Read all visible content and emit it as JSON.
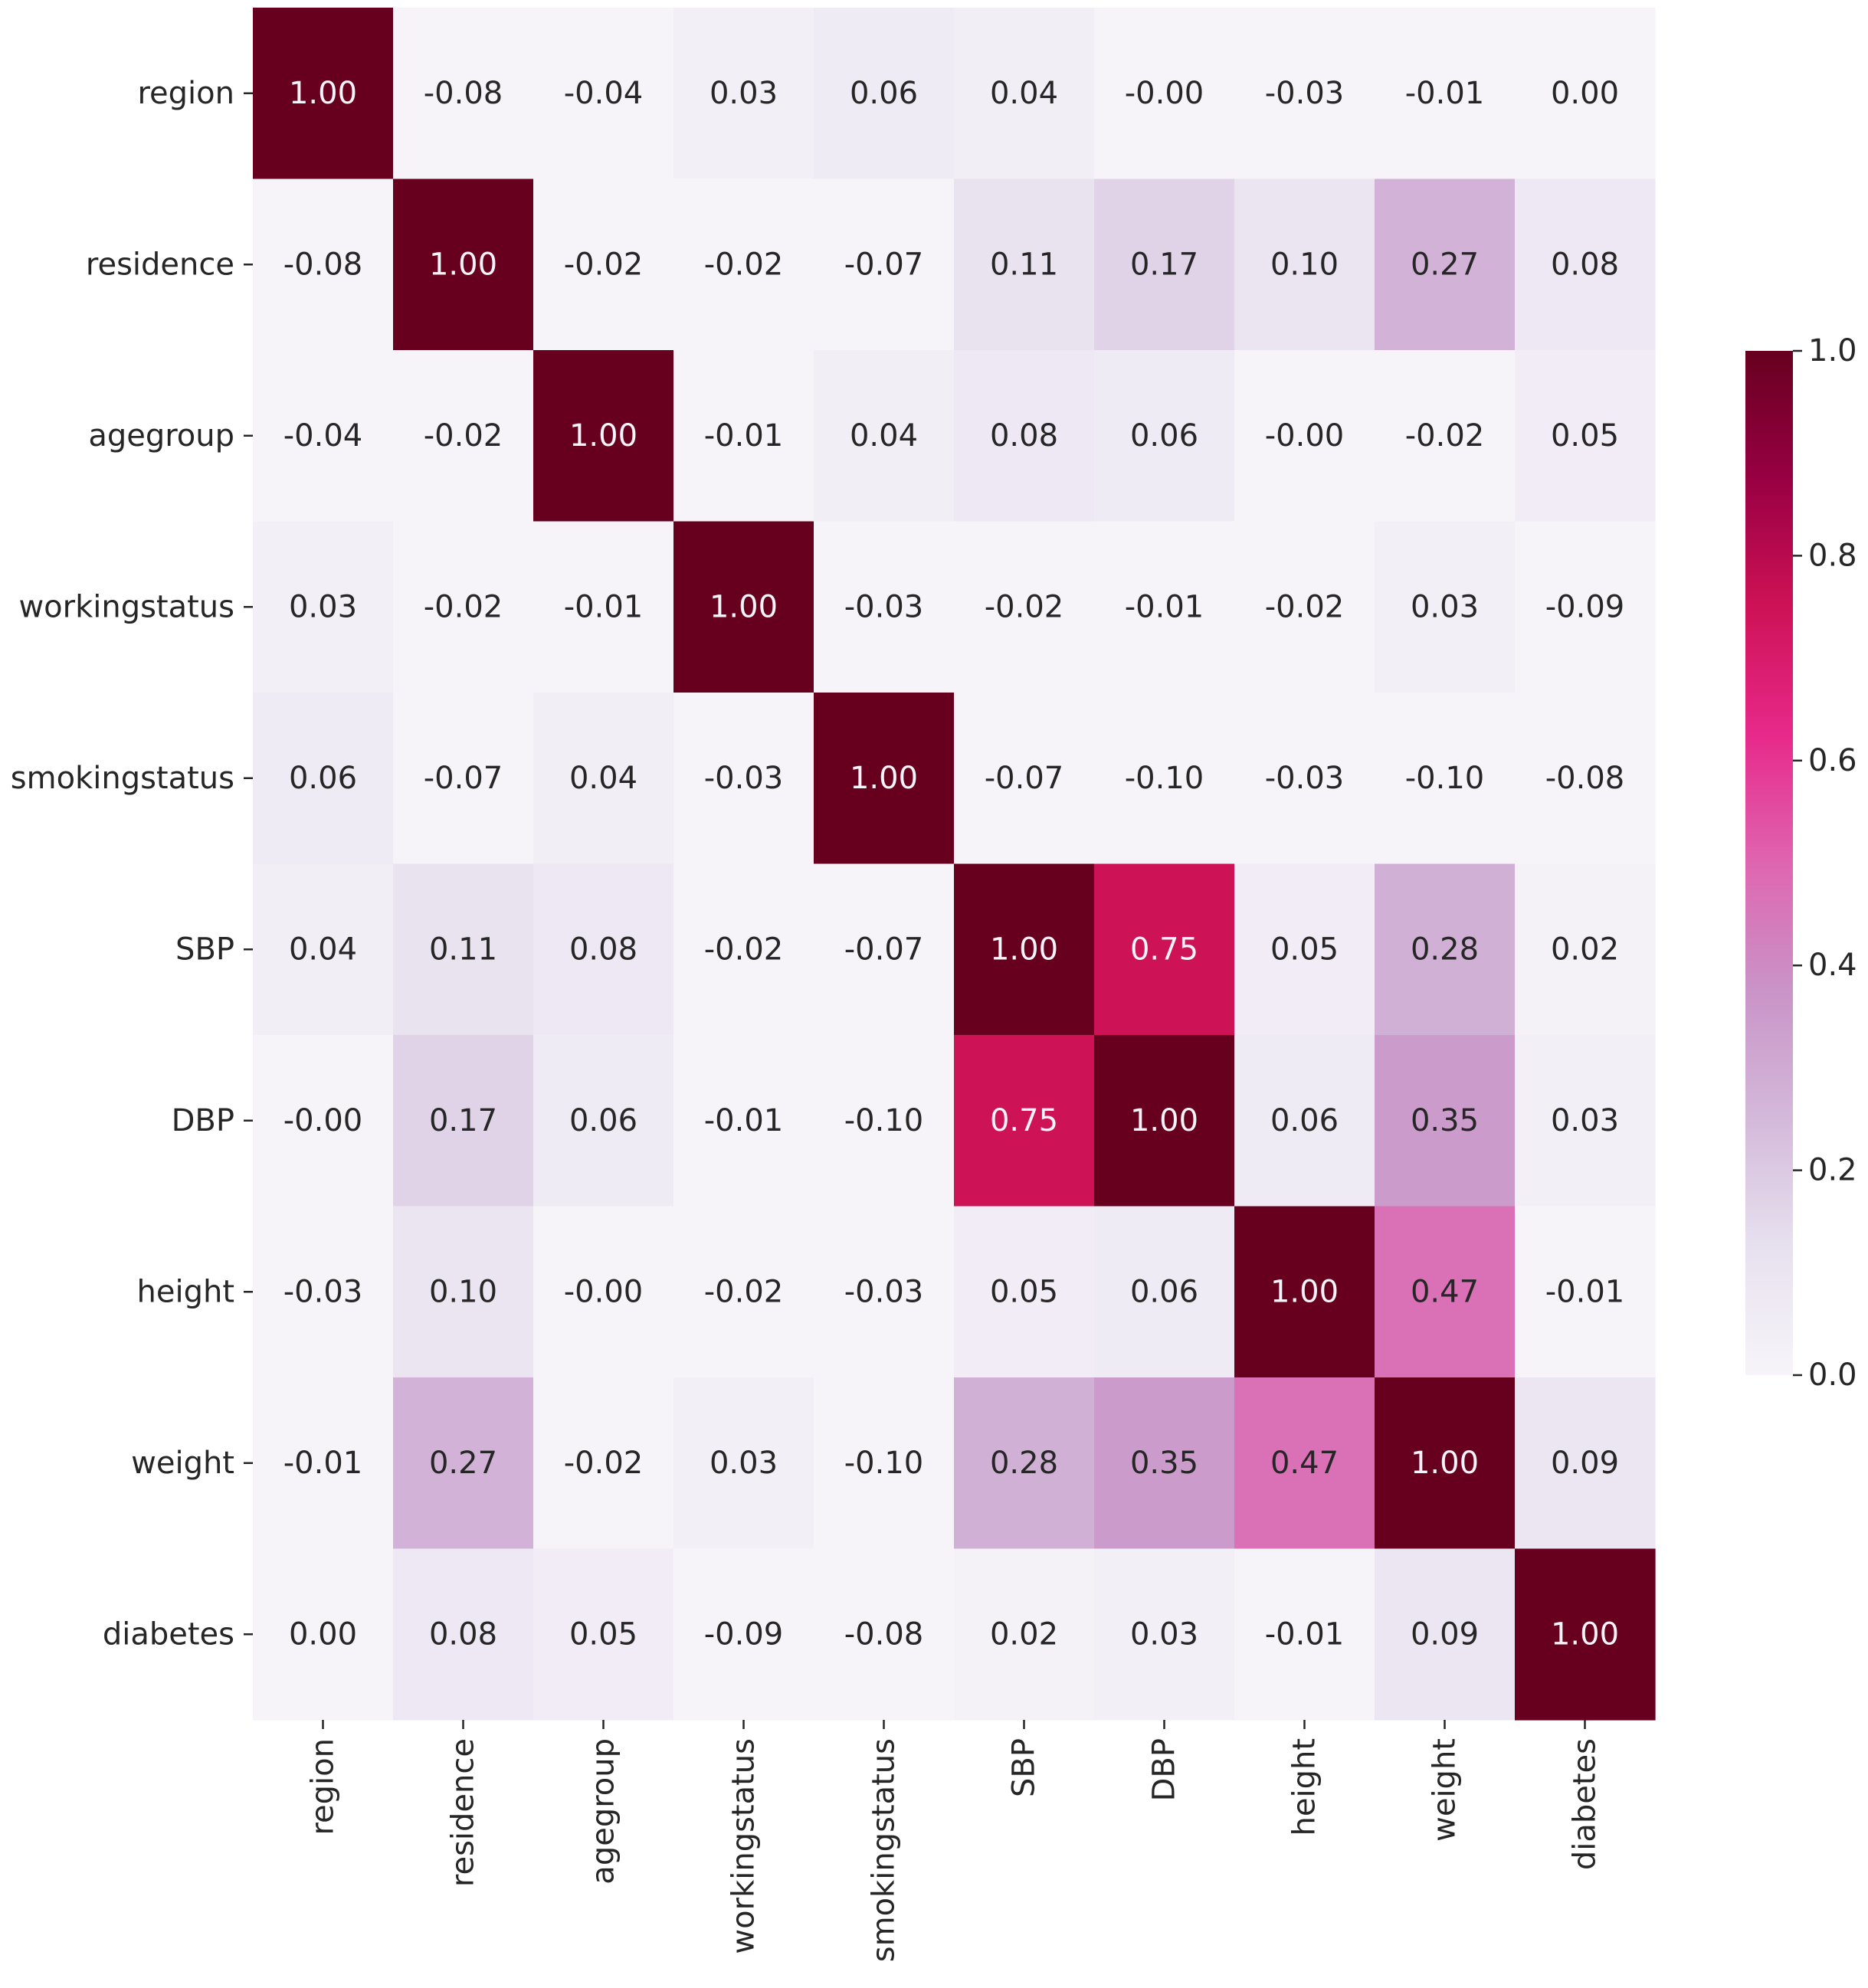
{
  "chart_data": {
    "type": "heatmap",
    "variables": [
      "region",
      "residence",
      "agegroup",
      "workingstatus",
      "smokingstatus",
      "SBP",
      "DBP",
      "height",
      "weight",
      "diabetes"
    ],
    "values": [
      [
        1.0,
        -0.08,
        -0.04,
        0.03,
        0.06,
        0.04,
        -0.0,
        -0.03,
        -0.01,
        0.0
      ],
      [
        -0.08,
        1.0,
        -0.02,
        -0.02,
        -0.07,
        0.11,
        0.17,
        0.1,
        0.27,
        0.08
      ],
      [
        -0.04,
        -0.02,
        1.0,
        -0.01,
        0.04,
        0.08,
        0.06,
        -0.0,
        -0.02,
        0.05
      ],
      [
        0.03,
        -0.02,
        -0.01,
        1.0,
        -0.03,
        -0.02,
        -0.01,
        -0.02,
        0.03,
        -0.09
      ],
      [
        0.06,
        -0.07,
        0.04,
        -0.03,
        1.0,
        -0.07,
        -0.1,
        -0.03,
        -0.1,
        -0.08
      ],
      [
        0.04,
        0.11,
        0.08,
        -0.02,
        -0.07,
        1.0,
        0.75,
        0.05,
        0.28,
        0.02
      ],
      [
        -0.0,
        0.17,
        0.06,
        -0.01,
        -0.1,
        0.75,
        1.0,
        0.06,
        0.35,
        0.03
      ],
      [
        -0.03,
        0.1,
        -0.0,
        -0.02,
        -0.03,
        0.05,
        0.06,
        1.0,
        0.47,
        -0.01
      ],
      [
        -0.01,
        0.27,
        -0.02,
        0.03,
        -0.1,
        0.28,
        0.35,
        0.47,
        1.0,
        0.09
      ],
      [
        0.0,
        0.08,
        0.05,
        -0.09,
        -0.08,
        0.02,
        0.03,
        -0.01,
        0.09,
        1.0
      ]
    ],
    "labels": [
      [
        "1.00",
        "-0.08",
        "-0.04",
        "0.03",
        "0.06",
        "0.04",
        "-0.00",
        "-0.03",
        "-0.01",
        "0.00"
      ],
      [
        "-0.08",
        "1.00",
        "-0.02",
        "-0.02",
        "-0.07",
        "0.11",
        "0.17",
        "0.10",
        "0.27",
        "0.08"
      ],
      [
        "-0.04",
        "-0.02",
        "1.00",
        "-0.01",
        "0.04",
        "0.08",
        "0.06",
        "-0.00",
        "-0.02",
        "0.05"
      ],
      [
        "0.03",
        "-0.02",
        "-0.01",
        "1.00",
        "-0.03",
        "-0.02",
        "-0.01",
        "-0.02",
        "0.03",
        "-0.09"
      ],
      [
        "0.06",
        "-0.07",
        "0.04",
        "-0.03",
        "1.00",
        "-0.07",
        "-0.10",
        "-0.03",
        "-0.10",
        "-0.08"
      ],
      [
        "0.04",
        "0.11",
        "0.08",
        "-0.02",
        "-0.07",
        "1.00",
        "0.75",
        "0.05",
        "0.28",
        "0.02"
      ],
      [
        "-0.00",
        "0.17",
        "0.06",
        "-0.01",
        "-0.10",
        "0.75",
        "1.00",
        "0.06",
        "0.35",
        "0.03"
      ],
      [
        "-0.03",
        "0.10",
        "-0.00",
        "-0.02",
        "-0.03",
        "0.05",
        "0.06",
        "1.00",
        "0.47",
        "-0.01"
      ],
      [
        "-0.01",
        "0.27",
        "-0.02",
        "0.03",
        "-0.10",
        "0.28",
        "0.35",
        "0.47",
        "1.00",
        "0.09"
      ],
      [
        "0.00",
        "0.08",
        "0.05",
        "-0.09",
        "-0.08",
        "0.02",
        "0.03",
        "-0.01",
        "0.09",
        "1.00"
      ]
    ],
    "colorbar": {
      "range": [
        0.0,
        1.0
      ],
      "ticks": [
        0.0,
        0.2,
        0.4,
        0.6,
        0.8,
        1.0
      ],
      "tick_labels": [
        "0.0",
        "0.2",
        "0.4",
        "0.6",
        "0.8",
        "1.0"
      ]
    },
    "colormap": {
      "name": "PuRd",
      "stops": [
        [
          0.0,
          "#f7f4f9"
        ],
        [
          0.125,
          "#e7e1ef"
        ],
        [
          0.25,
          "#d4b9da"
        ],
        [
          0.375,
          "#c994c7"
        ],
        [
          0.5,
          "#df65b0"
        ],
        [
          0.625,
          "#e7298a"
        ],
        [
          0.75,
          "#ce1256"
        ],
        [
          0.875,
          "#980043"
        ],
        [
          1.0,
          "#67001f"
        ]
      ]
    },
    "annotation_light_text_color": "#f7f4f9",
    "annotation_dark_text_color": "#262626",
    "title": "",
    "xlabel": "",
    "ylabel": "",
    "grid": false
  }
}
